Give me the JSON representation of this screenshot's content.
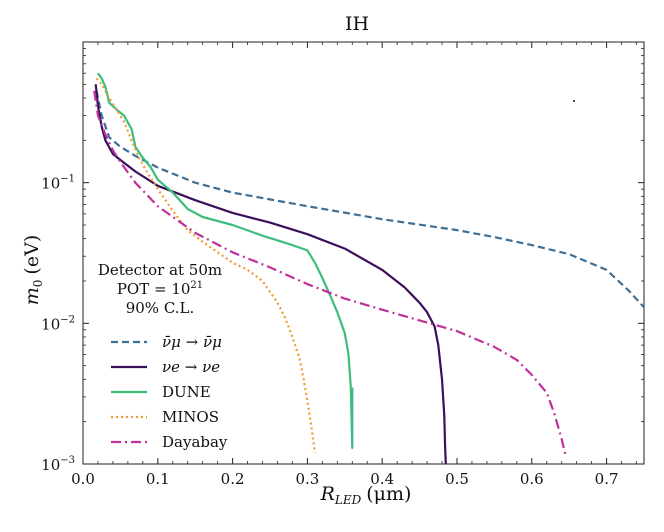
{
  "chart_data": {
    "type": "line",
    "title": "IH",
    "xlabel": "R_LED (μm)",
    "xlabel_main": "R",
    "xlabel_sub": "LED",
    "xlabel_units": "(μm)",
    "ylabel": "m0 (eV)",
    "ylabel_main": "m",
    "ylabel_sub": "0",
    "ylabel_units": "(eV)",
    "xlim": [
      0.0,
      0.75
    ],
    "ylim": [
      0.001,
      1.0
    ],
    "yscale": "log",
    "x_ticks": [
      {
        "value": 0.0,
        "label": "0.0"
      },
      {
        "value": 0.1,
        "label": "0.1"
      },
      {
        "value": 0.2,
        "label": "0.2"
      },
      {
        "value": 0.3,
        "label": "0.3"
      },
      {
        "value": 0.4,
        "label": "0.4"
      },
      {
        "value": 0.5,
        "label": "0.5"
      },
      {
        "value": 0.6,
        "label": "0.6"
      },
      {
        "value": 0.7,
        "label": "0.7"
      }
    ],
    "y_ticks": [
      {
        "value": 0.001,
        "base": "10",
        "exp": "−3"
      },
      {
        "value": 0.01,
        "base": "10",
        "exp": "−2"
      },
      {
        "value": 0.1,
        "base": "10",
        "exp": "−1"
      }
    ],
    "legend_position": "lower-left",
    "legend_header": [
      "Detector at 50m",
      "POT = 10^21",
      "90% C.L."
    ],
    "legend_pot_prefix": "POT = 10",
    "legend_pot_exp": "21",
    "series": [
      {
        "name": "ν̄μ → ν̄μ",
        "color": "#3e6f95",
        "dash": "dashed",
        "x": [
          0.018,
          0.025,
          0.035,
          0.05,
          0.07,
          0.1,
          0.15,
          0.2,
          0.3,
          0.4,
          0.5,
          0.55,
          0.6,
          0.65,
          0.7,
          0.73,
          0.75
        ],
        "y": [
          0.45,
          0.3,
          0.21,
          0.18,
          0.155,
          0.128,
          0.1,
          0.085,
          0.068,
          0.055,
          0.046,
          0.041,
          0.036,
          0.031,
          0.024,
          0.017,
          0.013
        ]
      },
      {
        "name": "νe → νe",
        "color": "#3b0f5a",
        "dash": "solid",
        "x": [
          0.017,
          0.02,
          0.025,
          0.03,
          0.04,
          0.05,
          0.07,
          0.1,
          0.15,
          0.2,
          0.25,
          0.3,
          0.35,
          0.4,
          0.43,
          0.45,
          0.46,
          0.47,
          0.475,
          0.48,
          0.483,
          0.484,
          0.485
        ],
        "y": [
          0.5,
          0.35,
          0.25,
          0.2,
          0.16,
          0.145,
          0.12,
          0.095,
          0.075,
          0.061,
          0.052,
          0.043,
          0.034,
          0.024,
          0.018,
          0.014,
          0.012,
          0.0095,
          0.007,
          0.004,
          0.0022,
          0.0014,
          0.001
        ]
      },
      {
        "name": "DUNE",
        "color": "#3dbd7d",
        "dash": "solid",
        "x": [
          0.02,
          0.025,
          0.03,
          0.035,
          0.045,
          0.055,
          0.065,
          0.07,
          0.08,
          0.09,
          0.1,
          0.12,
          0.14,
          0.16,
          0.2,
          0.24,
          0.28,
          0.3,
          0.31,
          0.32,
          0.33,
          0.34,
          0.35,
          0.355,
          0.358,
          0.36,
          0.36
        ],
        "y": [
          0.6,
          0.55,
          0.48,
          0.37,
          0.33,
          0.3,
          0.24,
          0.18,
          0.15,
          0.13,
          0.105,
          0.085,
          0.065,
          0.057,
          0.05,
          0.042,
          0.036,
          0.033,
          0.027,
          0.021,
          0.016,
          0.012,
          0.0085,
          0.006,
          0.0035,
          0.0013,
          0.0035
        ]
      },
      {
        "name": "MINOS",
        "color": "#f29a2e",
        "dash": "dotted",
        "x": [
          0.018,
          0.025,
          0.035,
          0.045,
          0.055,
          0.065,
          0.075,
          0.085,
          0.1,
          0.12,
          0.14,
          0.16,
          0.18,
          0.2,
          0.22,
          0.24,
          0.26,
          0.27,
          0.28,
          0.29,
          0.295,
          0.3,
          0.305,
          0.31
        ],
        "y": [
          0.55,
          0.5,
          0.4,
          0.33,
          0.27,
          0.2,
          0.15,
          0.12,
          0.09,
          0.063,
          0.046,
          0.038,
          0.032,
          0.027,
          0.024,
          0.02,
          0.014,
          0.011,
          0.008,
          0.0055,
          0.004,
          0.0028,
          0.0019,
          0.0012
        ]
      },
      {
        "name": "Dayabay",
        "color": "#c0309c",
        "dash": "dashdot",
        "x": [
          0.015,
          0.02,
          0.03,
          0.04,
          0.05,
          0.07,
          0.1,
          0.15,
          0.2,
          0.25,
          0.3,
          0.35,
          0.4,
          0.45,
          0.5,
          0.55,
          0.58,
          0.6,
          0.62,
          0.63,
          0.64,
          0.645
        ],
        "y": [
          0.45,
          0.3,
          0.22,
          0.17,
          0.14,
          0.1,
          0.068,
          0.044,
          0.032,
          0.025,
          0.019,
          0.015,
          0.0125,
          0.0105,
          0.0088,
          0.0068,
          0.0055,
          0.0043,
          0.0032,
          0.0023,
          0.0015,
          0.00115
        ]
      }
    ]
  }
}
